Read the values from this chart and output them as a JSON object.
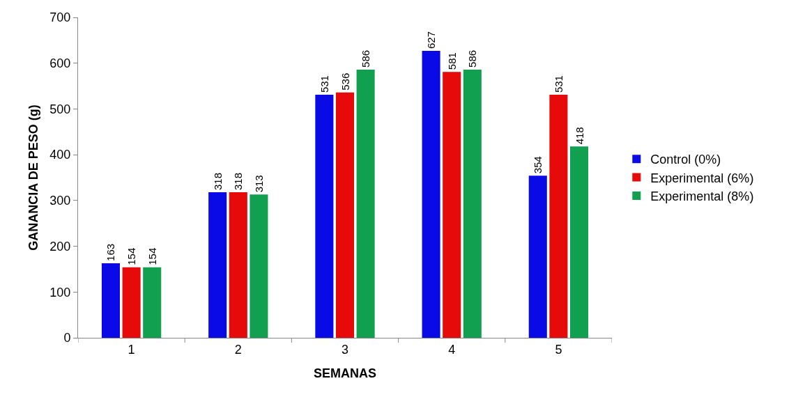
{
  "chart_data": {
    "type": "bar",
    "xlabel": "SEMANAS",
    "ylabel": "GANANCIA DE PESO (g)",
    "categories": [
      "1",
      "2",
      "3",
      "4",
      "5"
    ],
    "series": [
      {
        "name": "Control (0%)",
        "color": "#0a0ae6",
        "values": [
          163,
          318,
          531,
          627,
          354
        ]
      },
      {
        "name": "Experimental (6%)",
        "color": "#e60a0a",
        "values": [
          154,
          318,
          536,
          581,
          531
        ]
      },
      {
        "name": "Experimental (8%)",
        "color": "#10a050",
        "values": [
          154,
          313,
          586,
          586,
          418
        ]
      }
    ],
    "ylim": [
      0,
      700
    ],
    "yticks": [
      0,
      100,
      200,
      300,
      400,
      500,
      600,
      700
    ],
    "grid": false,
    "legend": "right",
    "data_labels": true
  }
}
